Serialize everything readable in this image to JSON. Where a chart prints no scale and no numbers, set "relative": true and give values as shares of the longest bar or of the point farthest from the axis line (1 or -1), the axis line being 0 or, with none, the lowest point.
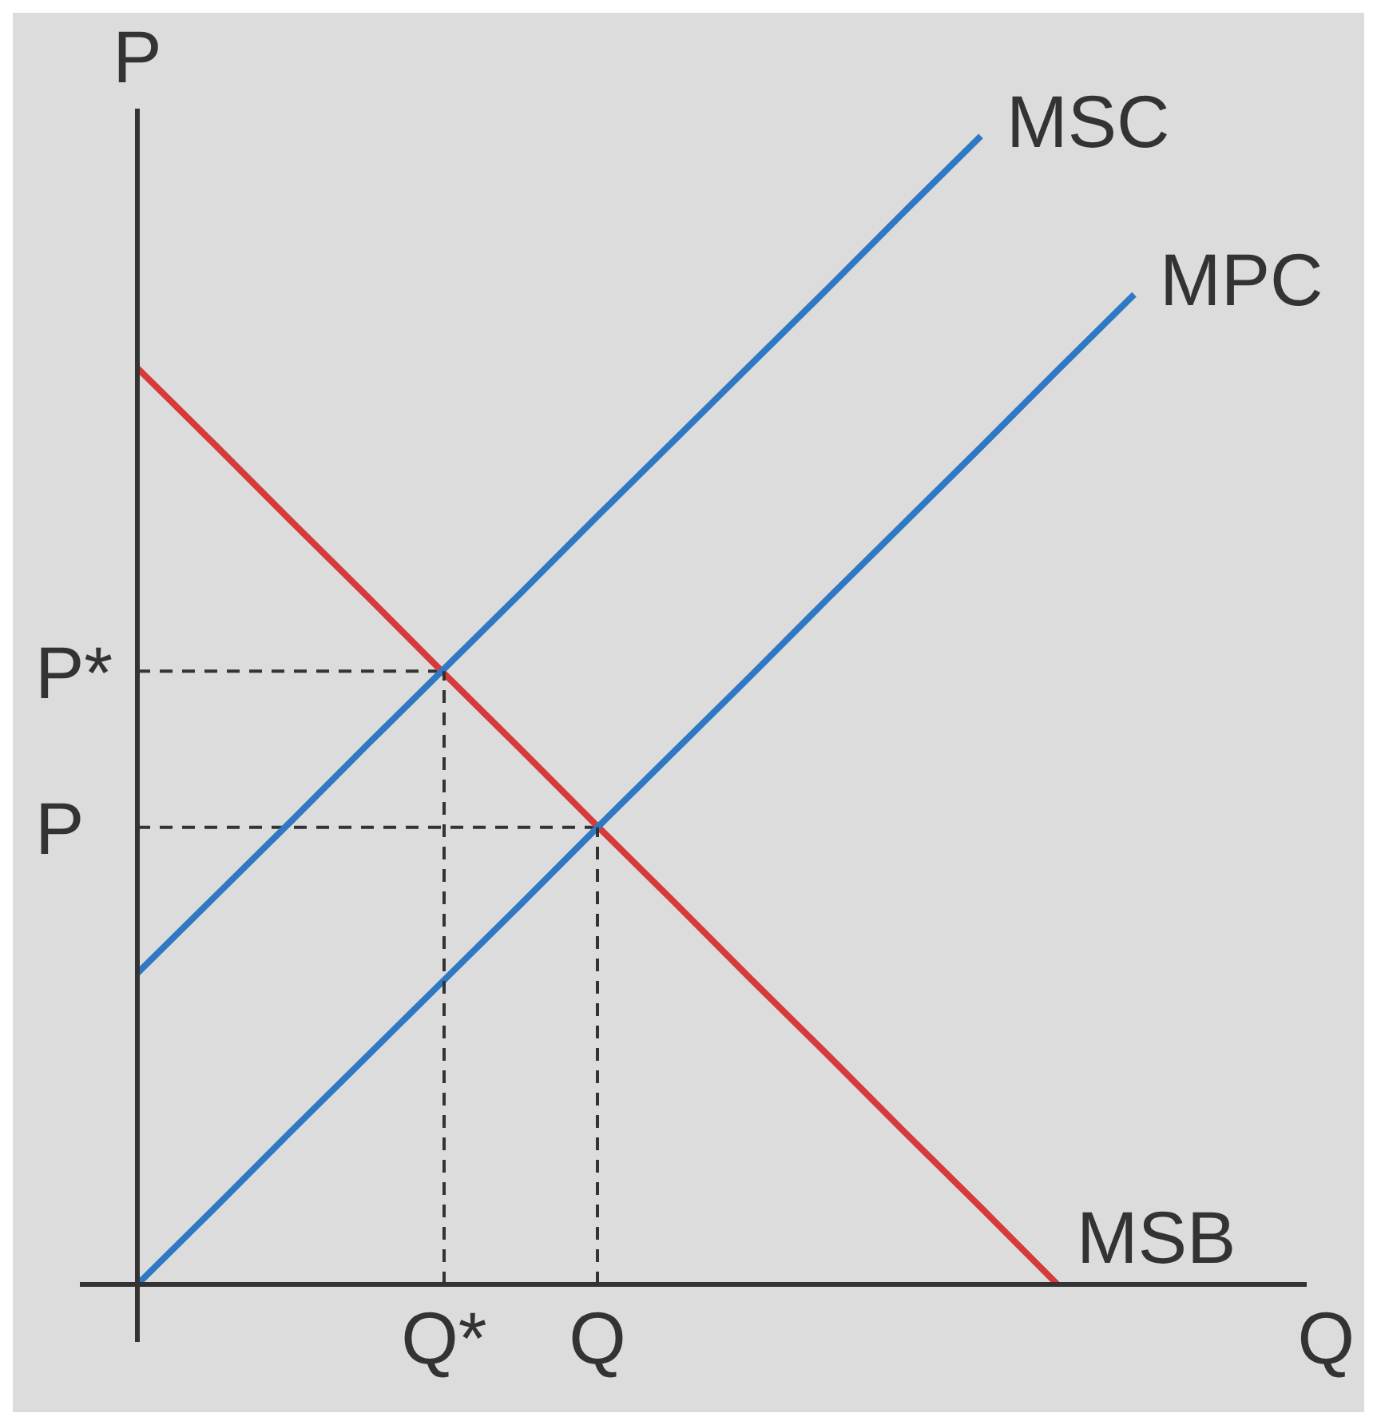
{
  "chart_data": {
    "type": "line",
    "relative": true,
    "xlabel": "Q",
    "ylabel": "P",
    "categories": [
      null,
      null,
      null,
      null,
      "Q*",
      null,
      "Q",
      null,
      null,
      null,
      null,
      null,
      null,
      null,
      null,
      null
    ],
    "series": [
      {
        "name": "MSC",
        "color": "#2f78c4",
        "values": [
          0.271,
          0.337,
          0.403,
          0.47,
          0.536,
          0.602,
          0.669,
          0.735,
          0.801,
          0.867,
          0.934,
          1,
          null,
          null,
          null,
          null
        ]
      },
      {
        "name": "MPC",
        "color": "#2f78c4",
        "values": [
          0,
          0.066,
          0.133,
          0.199,
          0.265,
          0.331,
          0.398,
          0.464,
          0.53,
          0.597,
          0.663,
          0.729,
          0.796,
          0.862,
          null,
          null
        ]
      },
      {
        "name": "MSB",
        "color": "#d63a3a",
        "values": [
          0.798,
          0.732,
          0.665,
          0.599,
          0.532,
          0.466,
          0.399,
          0.333,
          0.266,
          0.2,
          0.133,
          0.067,
          0,
          null,
          null,
          null
        ]
      },
      {
        "name": "P*",
        "color": "#333333",
        "line_style": "dashed",
        "values": [
          0.534,
          0.534,
          0.534,
          0.534,
          0.534,
          null,
          null,
          null,
          null,
          null,
          null,
          null,
          null,
          null,
          null,
          null
        ]
      },
      {
        "name": "P",
        "color": "#333333",
        "line_style": "dashed",
        "values": [
          0.398,
          0.398,
          0.398,
          0.398,
          0.398,
          0.398,
          0.398,
          null,
          null,
          null,
          null,
          null,
          null,
          null,
          null,
          null
        ]
      }
    ],
    "ref_lines": [
      {
        "axis": "x",
        "value": "Q*",
        "color": "#333333",
        "line_style": "dashed"
      },
      {
        "axis": "x",
        "value": "Q",
        "color": "#333333",
        "line_style": "dashed"
      }
    ],
    "legend": false
  }
}
